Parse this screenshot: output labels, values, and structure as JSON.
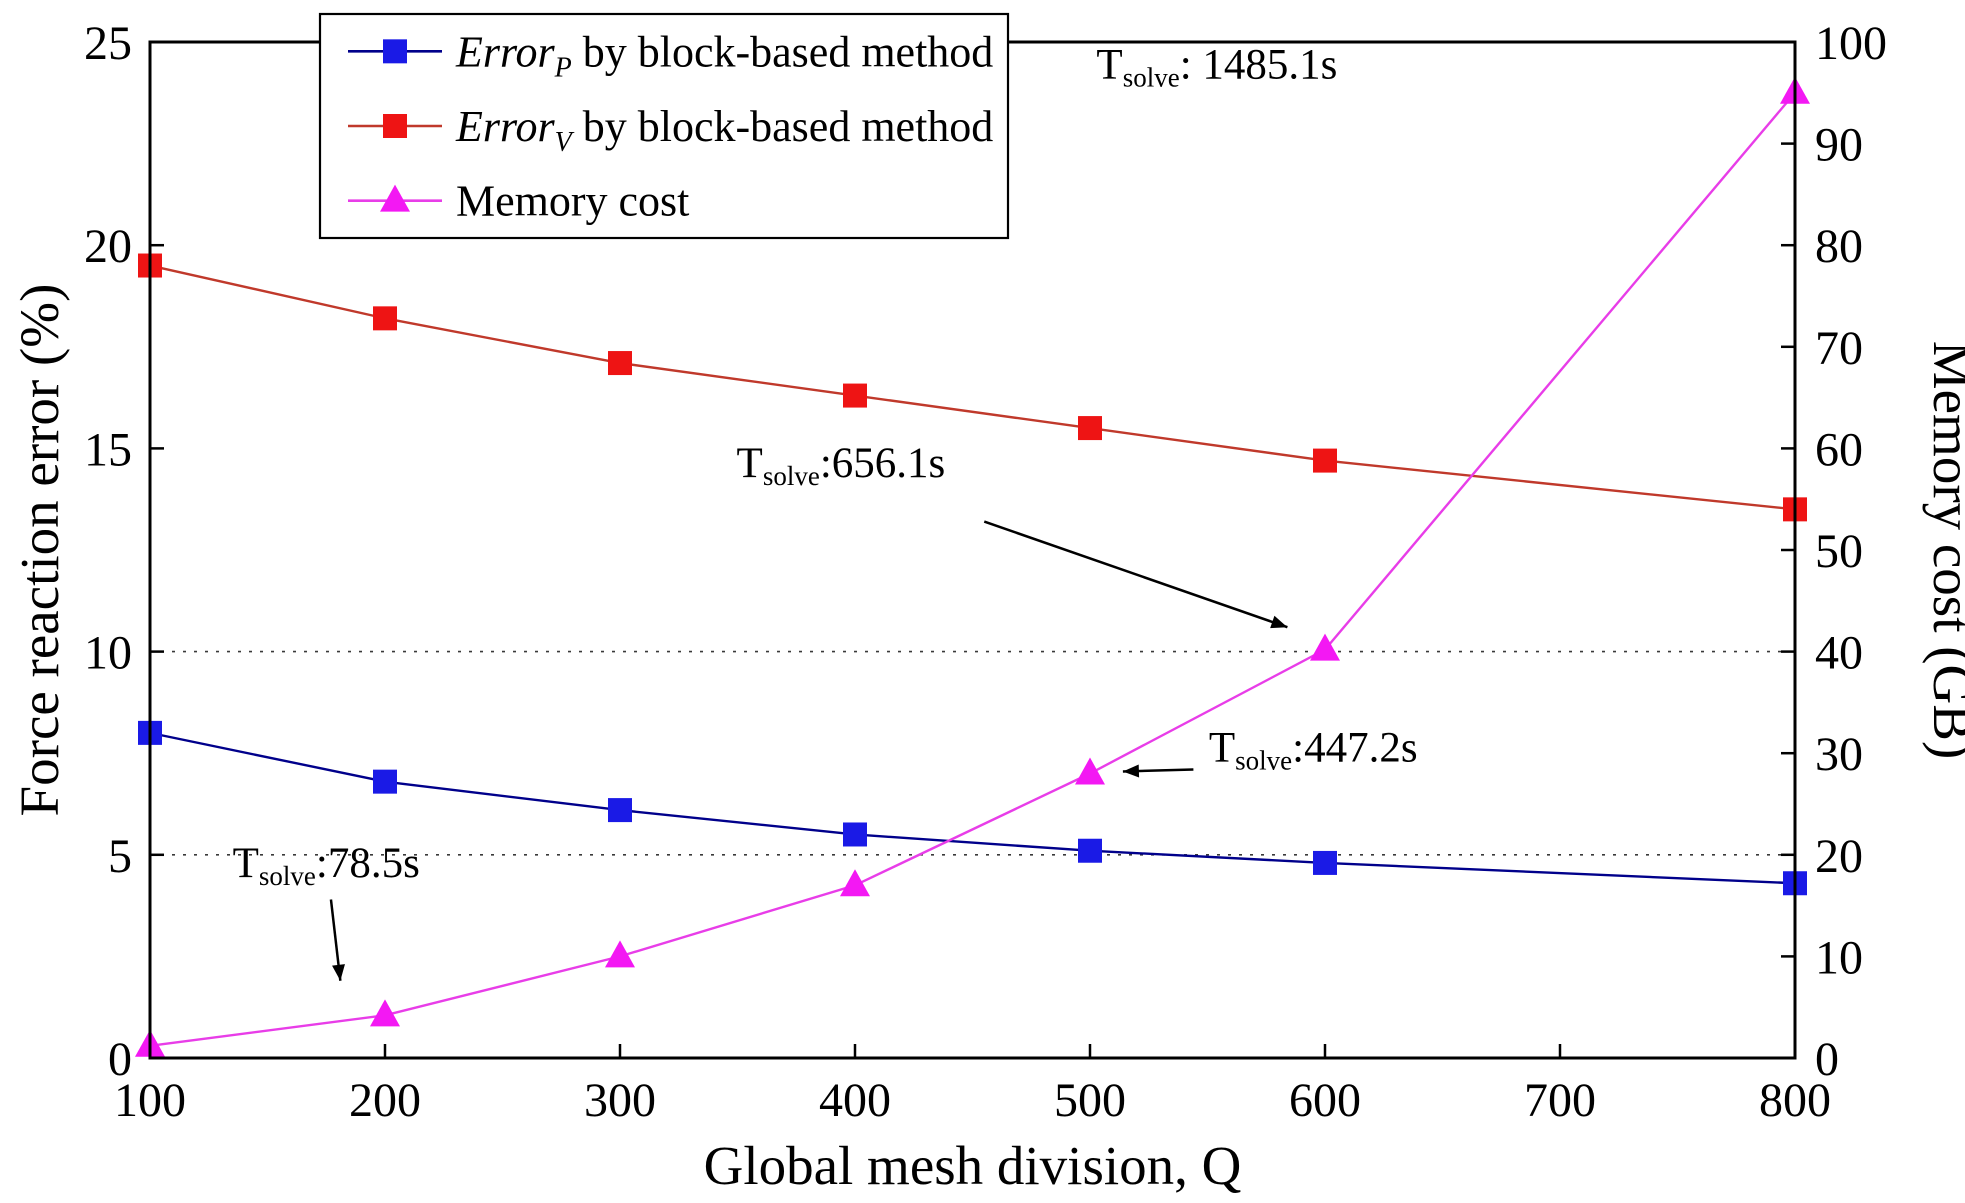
{
  "figure": {
    "background": "#ffffff"
  },
  "chart_data": {
    "type": "line",
    "title": "",
    "xlabel": "Global mesh division, Q",
    "ylabel_left": "Force reaction error (%)",
    "ylabel_right": "Memory cost (GB)",
    "xlim": [
      100,
      800
    ],
    "x_ticks": [
      100,
      200,
      300,
      400,
      500,
      600,
      700,
      800
    ],
    "ylim_left": [
      0,
      25
    ],
    "y_ticks_left": [
      0,
      5,
      10,
      15,
      20,
      25
    ],
    "ylim_right": [
      0,
      100
    ],
    "y_ticks_right": [
      0,
      10,
      20,
      30,
      40,
      50,
      60,
      70,
      80,
      90,
      100
    ],
    "dotted_gridlines_left": [
      5,
      10
    ],
    "legend_position": "top-left",
    "x": [
      100,
      200,
      300,
      400,
      500,
      600,
      800
    ],
    "series": [
      {
        "id": "error-p",
        "label_main": "Error",
        "label_main_italic": true,
        "label_sub": "P",
        "label_rest": " by block-based method",
        "axis": "left",
        "marker": "square",
        "line_color": "#00008B",
        "marker_color": "#1A1AE6",
        "values": [
          8.0,
          6.8,
          6.1,
          5.5,
          5.1,
          4.8,
          4.3
        ]
      },
      {
        "id": "error-v",
        "label_main": "Error",
        "label_main_italic": true,
        "label_sub": "V",
        "label_rest": " by block-based method",
        "axis": "left",
        "marker": "square",
        "line_color": "#C0392B",
        "marker_color": "#EE1414",
        "values": [
          19.5,
          18.2,
          17.1,
          16.3,
          15.5,
          14.7,
          13.5
        ]
      },
      {
        "id": "memory-cost",
        "label_main": "Memory cost",
        "label_main_italic": false,
        "label_sub": "",
        "label_rest": "",
        "axis": "right",
        "marker": "triangle",
        "line_color": "#E83DE8",
        "marker_color": "#F318F3",
        "values": [
          1.2,
          4.2,
          10.0,
          17.0,
          28.0,
          40.2,
          95.0
        ]
      }
    ],
    "annotations": [
      {
        "id": "tsolve-1485",
        "t": "T",
        "sub": "solve",
        "rest": ": 1485.1s",
        "x": 554,
        "y": 24.1,
        "arrow": null
      },
      {
        "id": "tsolve-656",
        "t": "T",
        "sub": "solve",
        "rest": ":656.1s",
        "x": 394,
        "y": 14.3,
        "arrow": {
          "from": [
            455,
            13.2
          ],
          "to": [
            584,
            10.6
          ]
        }
      },
      {
        "id": "tsolve-447",
        "t": "T",
        "sub": "solve",
        "rest": ":447.2s",
        "x": 595,
        "y": 7.3,
        "arrow": {
          "from": [
            544,
            7.1
          ],
          "to": [
            514,
            7.05
          ]
        }
      },
      {
        "id": "tsolve-78",
        "t": "T",
        "sub": "solve",
        "rest": ":78.5s",
        "x": 175,
        "y": 4.45,
        "arrow": {
          "from": [
            177,
            3.9
          ],
          "to": [
            181,
            1.9
          ]
        }
      }
    ],
    "axis_color": "#000000",
    "gridline_color": "#3a3a3a"
  }
}
